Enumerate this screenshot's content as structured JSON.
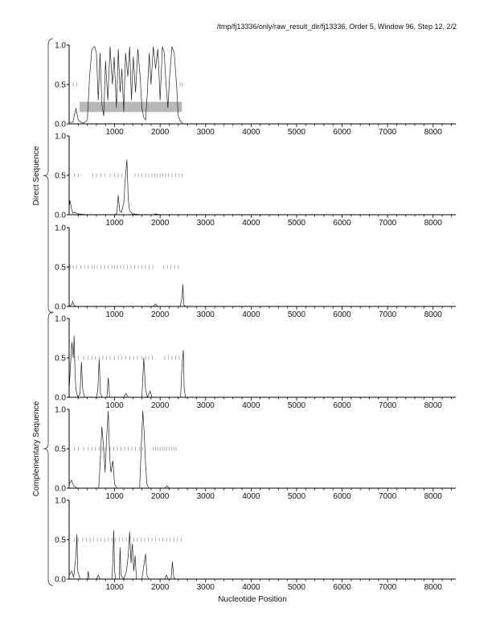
{
  "header": {
    "text": "/tmp/fj13336/only/raw_result_dir/fj13336, Order 5, Window 96, Step 12, 2/2"
  },
  "chart_data": {
    "type": "line",
    "xlabel": "Nucleotide Position",
    "xlim": [
      0,
      8500
    ],
    "ylim": [
      0,
      1
    ],
    "x_ticks": [
      1000,
      2000,
      3000,
      4000,
      5000,
      6000,
      7000,
      8000
    ],
    "y_ticks": [
      0.0,
      0.5,
      1.0
    ],
    "groups": [
      {
        "label": "Direct Sequence",
        "panels": [
          1,
          2,
          3
        ]
      },
      {
        "label": "Complementary Sequence",
        "panels": [
          4,
          5,
          6
        ]
      }
    ],
    "highlight": {
      "panel": 1,
      "x_start": 230,
      "x_end": 2480,
      "y_low": 0.15,
      "y_high": 0.28
    },
    "panels": [
      {
        "id": 1,
        "stop_ticks": [
          90,
          170,
          2440,
          2490
        ],
        "series": [
          [
            0,
            0.02
          ],
          [
            80,
            0.02
          ],
          [
            150,
            0.2
          ],
          [
            200,
            0.05
          ],
          [
            260,
            0.02
          ],
          [
            320,
            0.01
          ],
          [
            400,
            0.05
          ],
          [
            450,
            0.6
          ],
          [
            500,
            0.95
          ],
          [
            560,
            0.98
          ],
          [
            600,
            0.9
          ],
          [
            640,
            0.3
          ],
          [
            680,
            0.9
          ],
          [
            720,
            0.25
          ],
          [
            760,
            0.1
          ],
          [
            800,
            0.8
          ],
          [
            850,
            0.3
          ],
          [
            900,
            0.98
          ],
          [
            950,
            0.5
          ],
          [
            990,
            0.85
          ],
          [
            1040,
            0.2
          ],
          [
            1080,
            0.95
          ],
          [
            1120,
            0.4
          ],
          [
            1160,
            0.7
          ],
          [
            1200,
            0.15
          ],
          [
            1240,
            0.9
          ],
          [
            1290,
            0.6
          ],
          [
            1330,
            0.98
          ],
          [
            1370,
            0.3
          ],
          [
            1410,
            0.85
          ],
          [
            1460,
            0.4
          ],
          [
            1510,
            0.95
          ],
          [
            1560,
            0.6
          ],
          [
            1600,
            0.2
          ],
          [
            1640,
            0.08
          ],
          [
            1680,
            0.05
          ],
          [
            1720,
            0.4
          ],
          [
            1760,
            0.9
          ],
          [
            1800,
            0.5
          ],
          [
            1850,
            0.98
          ],
          [
            1900,
            0.7
          ],
          [
            1950,
            0.95
          ],
          [
            2000,
            0.3
          ],
          [
            2050,
            0.98
          ],
          [
            2090,
            0.9
          ],
          [
            2130,
            0.5
          ],
          [
            2170,
            0.2
          ],
          [
            2210,
            0.6
          ],
          [
            2260,
            0.98
          ],
          [
            2310,
            0.9
          ],
          [
            2360,
            0.5
          ],
          [
            2400,
            0.1
          ],
          [
            2450,
            0.03
          ],
          [
            2500,
            0.01
          ]
        ]
      },
      {
        "id": 2,
        "stop_ticks": [
          120,
          200,
          520,
          600,
          700,
          780,
          900,
          1000,
          1080,
          1160,
          1450,
          1520,
          1600,
          1680,
          1750,
          1820,
          1880,
          1940,
          2000,
          2060,
          2120,
          2180,
          2260,
          2340,
          2420,
          2480
        ],
        "series": [
          [
            0,
            0.1
          ],
          [
            20,
            0.18
          ],
          [
            50,
            0.08
          ],
          [
            80,
            0.02
          ],
          [
            120,
            0.03
          ],
          [
            200,
            0.01
          ],
          [
            400,
            0.0
          ],
          [
            1000,
            0.0
          ],
          [
            1050,
            0.02
          ],
          [
            1080,
            0.25
          ],
          [
            1110,
            0.05
          ],
          [
            1150,
            0.03
          ],
          [
            1200,
            0.15
          ],
          [
            1240,
            0.5
          ],
          [
            1270,
            0.7
          ],
          [
            1300,
            0.2
          ],
          [
            1330,
            0.05
          ],
          [
            1400,
            0.01
          ],
          [
            1600,
            0.0
          ],
          [
            1850,
            0.0
          ],
          [
            1900,
            0.01
          ],
          [
            2000,
            0.0
          ],
          [
            8500,
            0.0
          ]
        ]
      },
      {
        "id": 3,
        "stop_ticks": [
          20,
          90,
          160,
          260,
          340,
          420,
          500,
          560,
          620,
          700,
          780,
          860,
          940,
          1000,
          1060,
          1130,
          1200,
          1280,
          1360,
          1440,
          1520,
          1600,
          1680,
          1760,
          1840,
          2080,
          2160,
          2240,
          2320,
          2400
        ],
        "series": [
          [
            0,
            0.0
          ],
          [
            50,
            0.02
          ],
          [
            80,
            0.06
          ],
          [
            110,
            0.01
          ],
          [
            150,
            0.0
          ],
          [
            1850,
            0.0
          ],
          [
            1900,
            0.03
          ],
          [
            1950,
            0.0
          ],
          [
            2440,
            0.0
          ],
          [
            2480,
            0.1
          ],
          [
            2500,
            0.28
          ],
          [
            2520,
            0.02
          ],
          [
            2560,
            0.0
          ],
          [
            8500,
            0.0
          ]
        ]
      },
      {
        "id": 4,
        "stop_ticks": [
          120,
          200,
          320,
          420,
          500,
          580,
          660,
          740,
          820,
          900,
          1000,
          1080,
          1160,
          1240,
          1340,
          1420,
          1500,
          1600,
          1680,
          1750,
          1830,
          2100,
          2180,
          2260,
          2340,
          2420
        ],
        "series": [
          [
            0,
            0.1
          ],
          [
            30,
            0.4
          ],
          [
            60,
            0.7
          ],
          [
            90,
            0.5
          ],
          [
            110,
            0.78
          ],
          [
            130,
            0.3
          ],
          [
            150,
            0.1
          ],
          [
            190,
            0.0
          ],
          [
            240,
            0.05
          ],
          [
            270,
            0.45
          ],
          [
            300,
            0.1
          ],
          [
            340,
            0.0
          ],
          [
            600,
            0.0
          ],
          [
            630,
            0.1
          ],
          [
            660,
            0.48
          ],
          [
            690,
            0.05
          ],
          [
            720,
            0.0
          ],
          [
            830,
            0.0
          ],
          [
            860,
            0.25
          ],
          [
            890,
            0.0
          ],
          [
            1200,
            0.0
          ],
          [
            1250,
            0.05
          ],
          [
            1300,
            0.0
          ],
          [
            1600,
            0.0
          ],
          [
            1640,
            0.5
          ],
          [
            1680,
            0.1
          ],
          [
            1720,
            0.0
          ],
          [
            1780,
            0.08
          ],
          [
            1820,
            0.0
          ],
          [
            2450,
            0.0
          ],
          [
            2480,
            0.4
          ],
          [
            2510,
            0.6
          ],
          [
            2530,
            0.1
          ],
          [
            2560,
            0.0
          ],
          [
            8500,
            0.0
          ]
        ]
      },
      {
        "id": 5,
        "stop_ticks": [
          120,
          200,
          320,
          420,
          500,
          580,
          660,
          740,
          820,
          900,
          980,
          1060,
          1140,
          1220,
          1300,
          1380,
          1460,
          1540,
          1620,
          1850,
          1900,
          1950,
          2000,
          2050,
          2100,
          2150,
          2200,
          2250,
          2300,
          2350
        ],
        "series": [
          [
            0,
            0.05
          ],
          [
            50,
            0.1
          ],
          [
            100,
            0.03
          ],
          [
            180,
            0.0
          ],
          [
            650,
            0.0
          ],
          [
            680,
            0.3
          ],
          [
            720,
            0.78
          ],
          [
            760,
            0.5
          ],
          [
            790,
            0.2
          ],
          [
            820,
            0.6
          ],
          [
            860,
            0.98
          ],
          [
            890,
            0.4
          ],
          [
            920,
            0.2
          ],
          [
            960,
            0.35
          ],
          [
            1000,
            0.05
          ],
          [
            1050,
            0.0
          ],
          [
            1550,
            0.0
          ],
          [
            1590,
            0.6
          ],
          [
            1620,
            0.98
          ],
          [
            1650,
            0.7
          ],
          [
            1680,
            0.3
          ],
          [
            1710,
            0.05
          ],
          [
            1750,
            0.0
          ],
          [
            2100,
            0.0
          ],
          [
            2150,
            0.03
          ],
          [
            2200,
            0.0
          ],
          [
            8500,
            0.0
          ]
        ]
      },
      {
        "id": 6,
        "stop_ticks": [
          120,
          200,
          300,
          380,
          460,
          540,
          620,
          700,
          780,
          860,
          940,
          1020,
          1100,
          1180,
          1260,
          1340,
          1420,
          1500,
          1580,
          1660,
          1740,
          1820,
          1900,
          1980,
          2060,
          2140,
          2220,
          2300,
          2380,
          2460
        ],
        "series": [
          [
            0,
            0.05
          ],
          [
            60,
            0.1
          ],
          [
            100,
            0.02
          ],
          [
            150,
            0.3
          ],
          [
            170,
            0.57
          ],
          [
            190,
            0.1
          ],
          [
            240,
            0.0
          ],
          [
            400,
            0.0
          ],
          [
            420,
            0.1
          ],
          [
            440,
            0.0
          ],
          [
            600,
            0.0
          ],
          [
            640,
            0.05
          ],
          [
            680,
            0.0
          ],
          [
            940,
            0.0
          ],
          [
            960,
            0.2
          ],
          [
            980,
            0.62
          ],
          [
            1000,
            0.1
          ],
          [
            1020,
            0.0
          ],
          [
            1100,
            0.0
          ],
          [
            1120,
            0.4
          ],
          [
            1140,
            0.05
          ],
          [
            1200,
            0.0
          ],
          [
            1260,
            0.1
          ],
          [
            1300,
            0.3
          ],
          [
            1330,
            0.6
          ],
          [
            1360,
            0.2
          ],
          [
            1390,
            0.45
          ],
          [
            1420,
            0.1
          ],
          [
            1450,
            0.3
          ],
          [
            1480,
            0.0
          ],
          [
            1600,
            0.0
          ],
          [
            1650,
            0.2
          ],
          [
            1680,
            0.32
          ],
          [
            1710,
            0.05
          ],
          [
            1750,
            0.0
          ],
          [
            2100,
            0.0
          ],
          [
            2140,
            0.05
          ],
          [
            2180,
            0.0
          ],
          [
            2240,
            0.0
          ],
          [
            2270,
            0.22
          ],
          [
            2300,
            0.02
          ],
          [
            2340,
            0.0
          ],
          [
            8500,
            0.0
          ]
        ]
      }
    ]
  }
}
